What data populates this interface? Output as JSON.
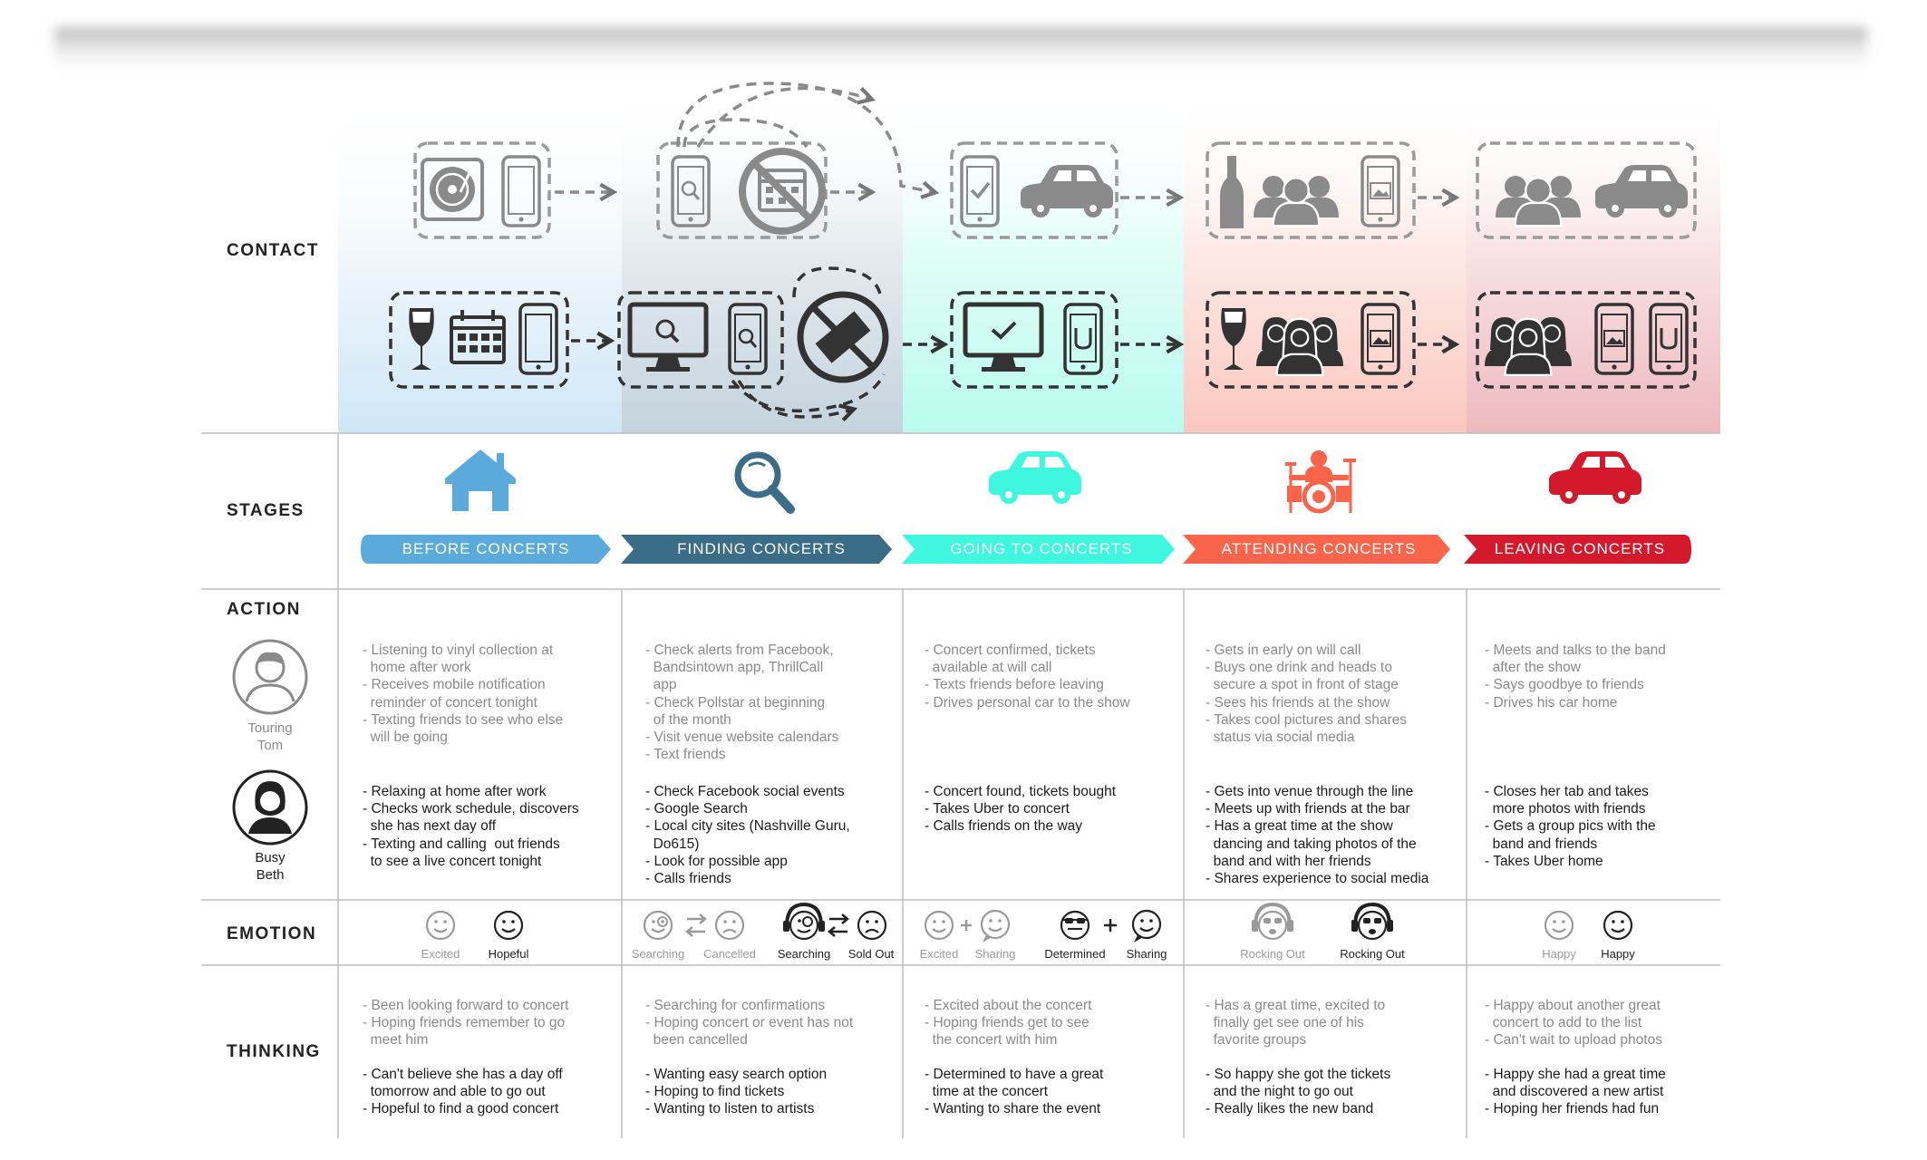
{
  "rows": {
    "contact": "CONTACT",
    "stages": "STAGES",
    "action": "ACTION",
    "emotion": "EMOTION",
    "thinking": "THINKING"
  },
  "personas": {
    "tom": "Touring\nTom",
    "beth": "Busy\nBeth"
  },
  "stages": [
    {
      "label": "BEFORE CONCERTS",
      "color": "#5aabdc",
      "icon": "house-icon"
    },
    {
      "label": "FINDING CONCERTS",
      "color": "#3b6d89",
      "icon": "magnifier-icon"
    },
    {
      "label": "GOING TO CONCERTS",
      "color": "#3ff6df",
      "icon": "car-icon"
    },
    {
      "label": "ATTENDING CONCERTS",
      "color": "#fa644b",
      "icon": "drum-kit-icon"
    },
    {
      "label": "LEAVING CONCERTS",
      "color": "#d3192b",
      "icon": "car-icon"
    }
  ],
  "actions_tom": [
    "- Listening to vinyl collection at\n  home after work\n- Receives mobile notification\n  reminder of concert tonight\n- Texting friends to see who else\n  will be going",
    "- Check alerts from Facebook,\n  Bandsintown app, ThrillCall\n  app\n- Check Pollstar at beginning\n  of the month\n- Visit venue website calendars\n- Text friends",
    "- Concert confirmed, tickets\n  available at will call\n- Texts friends before leaving\n- Drives personal car to the show",
    "- Gets in early on will call\n- Buys one drink and heads to\n  secure a spot in front of stage\n- Sees his friends at the show\n- Takes cool pictures and shares\n  status via social media",
    "- Meets and talks to the band\n  after the show\n- Says goodbye to friends\n- Drives his car home"
  ],
  "actions_beth": [
    "- Relaxing at home after work\n- Checks work schedule, discovers\n  she has next day off\n- Texting and calling  out friends\n  to see a live concert tonight",
    "- Check Facebook social events\n- Google Search\n- Local city sites (Nashville Guru,\n  Do615)\n- Look for possible app\n- Calls friends",
    "- Concert found, tickets bought\n- Takes Uber to concert\n- Calls friends on the way",
    "- Gets into venue through the line\n- Meets up with friends at the bar\n- Has a great time at the show\n  dancing and taking photos of the\n  band and with her friends\n- Shares experience to social media",
    "- Closes her tab and takes\n  more photos with friends\n- Gets a group pics with the\n  band and friends\n- Takes Uber home"
  ],
  "emotions": [
    [
      "Excited",
      "Hopeful"
    ],
    [
      "Searching",
      "Cancelled",
      "Searching",
      "Sold Out"
    ],
    [
      "Excited",
      "Sharing",
      "Determined",
      "Sharing"
    ],
    [
      "Rocking Out",
      "Rocking Out"
    ],
    [
      "Happy",
      "Happy"
    ]
  ],
  "thinking_tom": [
    "- Been looking forward to concert\n- Hoping friends remember to go\n  meet him",
    "- Searching for confirmations\n- Hoping concert or event has not\n  been cancelled",
    "- Excited about the concert\n- Hoping friends get to see\n  the concert with him",
    "- Has a great time, excited to\n  finally get see one of his\n  favorite groups",
    "- Happy about another great\n  concert to add to the list\n- Can't wait to upload photos"
  ],
  "thinking_beth": [
    "- Can't believe she has a day off\n  tomorrow and able to go out\n- Hopeful to find a good concert",
    "- Wanting easy search option\n- Hoping to find tickets\n- Wanting to listen to artists",
    "- Determined to have a great\n  time at the concert\n- Wanting to share the event",
    "- So happy she got the tickets\n  and the night to go out\n- Really likes the new band",
    "- Happy she had a great time\n  and discovered a new artist\n- Hoping her friends had fun"
  ],
  "colors": {
    "before": "#5aabdc",
    "finding": "#3b6d89",
    "going": "#3ff6df",
    "attending": "#fa644b",
    "leaving": "#d3192b",
    "icon_gray": "#8a8a8a",
    "icon_dark": "#333333"
  }
}
